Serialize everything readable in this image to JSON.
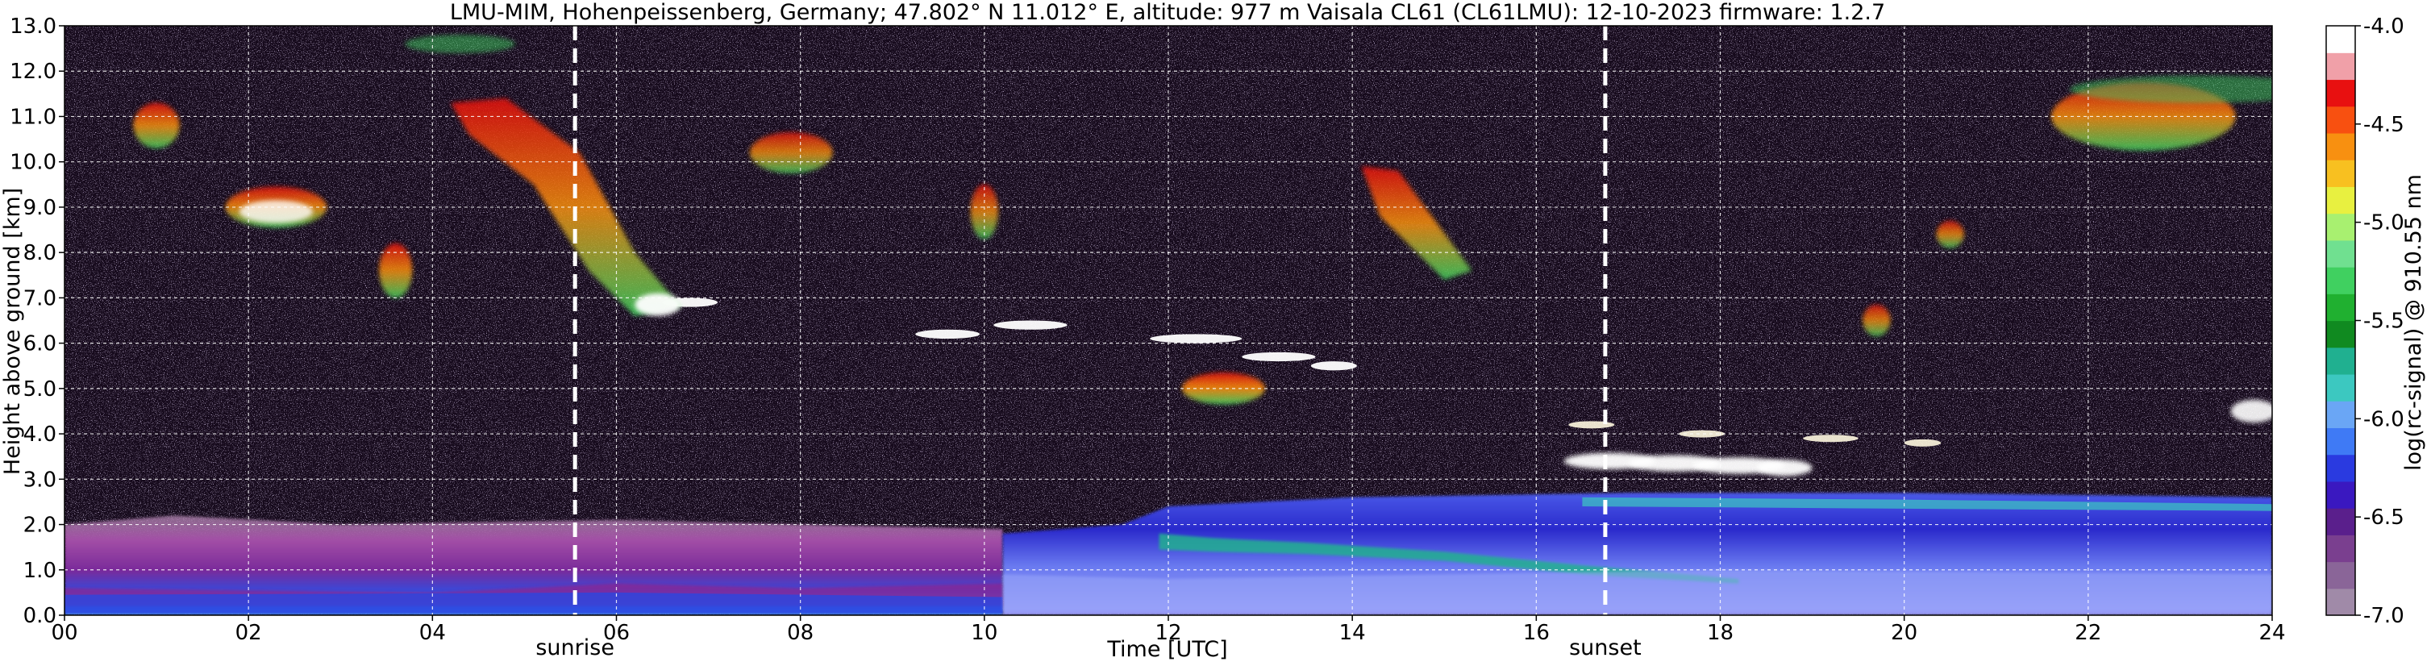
{
  "chart_data": {
    "type": "heatmap",
    "title": "LMU-MIM, Hohenpeissenberg, Germany; 47.802° N 11.012° E, altitude: 977 m    Vaisala CL61 (CL61LMU): 12-10-2023    firmware: 1.2.7",
    "xlabel": "Time [UTC]",
    "ylabel": "Height above ground [km]",
    "xlim": [
      0,
      24
    ],
    "ylim": [
      0,
      13
    ],
    "x_ticks": [
      "00",
      "02",
      "04",
      "06",
      "08",
      "10",
      "12",
      "14",
      "16",
      "18",
      "20",
      "22",
      "24"
    ],
    "y_ticks": [
      "0.0",
      "1.0",
      "2.0",
      "3.0",
      "4.0",
      "5.0",
      "6.0",
      "7.0",
      "8.0",
      "9.0",
      "10.0",
      "11.0",
      "12.0",
      "13.0"
    ],
    "grid": true,
    "colorbar": {
      "label": "log(rc-signal) @ 910.55 nm",
      "range": [
        -7.0,
        -4.0
      ],
      "ticks": [
        "-4.0",
        "-4.5",
        "-5.0",
        "-5.5",
        "-6.0",
        "-6.5",
        "-7.0"
      ],
      "colors": [
        "#a08aa8",
        "#8a6598",
        "#7a3f8f",
        "#5a1f8c",
        "#3a18c0",
        "#2a3ae0",
        "#3f7af5",
        "#6aa6f5",
        "#3cc8c0",
        "#20b090",
        "#108a20",
        "#20b030",
        "#40d060",
        "#70e090",
        "#a8f070",
        "#e8f040",
        "#f8c020",
        "#f89010",
        "#f85010",
        "#e81010",
        "#f0a0a8",
        "#ffffff"
      ]
    },
    "markers": [
      {
        "label": "sunrise",
        "time_utc": 5.55
      },
      {
        "label": "sunset",
        "time_utc": 16.75
      }
    ],
    "features": [
      {
        "kind": "boundary-layer aerosol",
        "time_start": 0,
        "time_end": 10.2,
        "height_top_km": 2.0
      },
      {
        "kind": "boundary-layer aerosol",
        "time_start": 10.2,
        "time_end": 24,
        "height_top_km": 2.6
      },
      {
        "kind": "residual layer",
        "time_start": 12.0,
        "time_end": 18.2,
        "height_km": 1.0
      },
      {
        "kind": "low cloud",
        "time_start": 16.5,
        "time_end": 19.0,
        "height_km": 3.3
      },
      {
        "kind": "mid cloud",
        "time_start": 9.5,
        "time_end": 14.0,
        "height_km": 6.0
      },
      {
        "kind": "cirrus",
        "time_start": 4.2,
        "time_end": 6.6,
        "height_km": 10.5
      },
      {
        "kind": "cirrus",
        "time_start": 21.5,
        "time_end": 23.5,
        "height_km": 11.2
      }
    ]
  }
}
